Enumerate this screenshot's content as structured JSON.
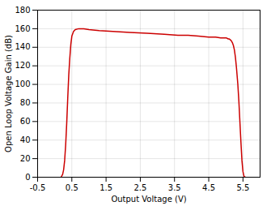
{
  "chart_data": {
    "type": "line",
    "xlabel": "Output Voltage (V)",
    "ylabel": "Open Loop Voltage Gain (dB)",
    "x": [
      0.18,
      0.2,
      0.23,
      0.26,
      0.29,
      0.32,
      0.35,
      0.38,
      0.41,
      0.44,
      0.47,
      0.5,
      0.55,
      0.6,
      0.7,
      0.85,
      1.0,
      1.3,
      1.7,
      2.2,
      2.7,
      3.2,
      3.6,
      3.9,
      4.2,
      4.5,
      4.7,
      4.85,
      4.95,
      5.02,
      5.07,
      5.1,
      5.13,
      5.16,
      5.19,
      5.22,
      5.25,
      5.28,
      5.31,
      5.35,
      5.38,
      5.41,
      5.44,
      5.47,
      5.5,
      5.53,
      5.56,
      5.58
    ],
    "values": [
      0,
      1,
      3,
      8,
      18,
      35,
      58,
      85,
      110,
      128,
      143,
      152,
      157,
      159,
      160,
      160,
      159,
      158,
      157,
      156,
      155,
      154,
      153,
      153,
      152,
      151,
      151,
      150,
      150,
      150,
      149,
      149,
      148,
      147,
      145,
      142,
      137,
      129,
      118,
      100,
      82,
      60,
      38,
      18,
      6,
      1,
      0,
      0
    ],
    "color": "#cc0000",
    "xlim": [
      -0.5,
      6.0
    ],
    "ylim": [
      0,
      180
    ],
    "xticks": [
      -0.5,
      0.5,
      1.5,
      2.5,
      3.5,
      4.5,
      5.5
    ],
    "yticks": [
      0,
      20,
      40,
      60,
      80,
      100,
      120,
      140,
      160,
      180
    ],
    "grid": true
  }
}
